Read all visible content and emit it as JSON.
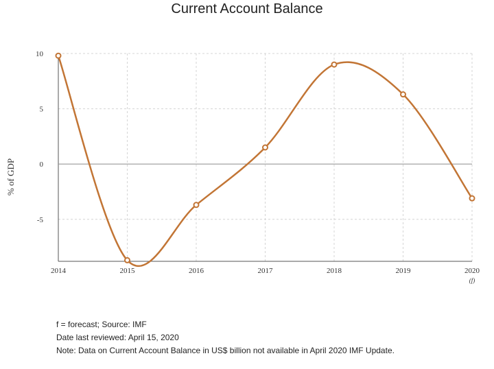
{
  "chart_data": {
    "type": "line",
    "title": "Current Account Balance",
    "ylabel": "% of GDP",
    "xlabel": "",
    "categories": [
      "2014",
      "2015",
      "2016",
      "2017",
      "2018",
      "2019",
      "2020"
    ],
    "category_sublabels": [
      "",
      "",
      "",
      "",
      "",
      "",
      "(f)"
    ],
    "series": [
      {
        "values": [
          9.8,
          -8.7,
          -3.7,
          1.5,
          9.0,
          6.3,
          -3.1
        ]
      }
    ],
    "ylim": [
      -8.8,
      10
    ],
    "yticks": [
      10,
      5,
      0,
      -5
    ],
    "grid": true,
    "legend": "none",
    "colors": {
      "line": "#c27535",
      "zero_line": "#999999",
      "axis": "#555555"
    }
  },
  "footnotes": {
    "line1": "f = forecast; Source: IMF",
    "line2": "Date last reviewed: April 15, 2020",
    "line3": "Note: Data on Current Account Balance in US$ billion not available in April 2020 IMF Update."
  }
}
